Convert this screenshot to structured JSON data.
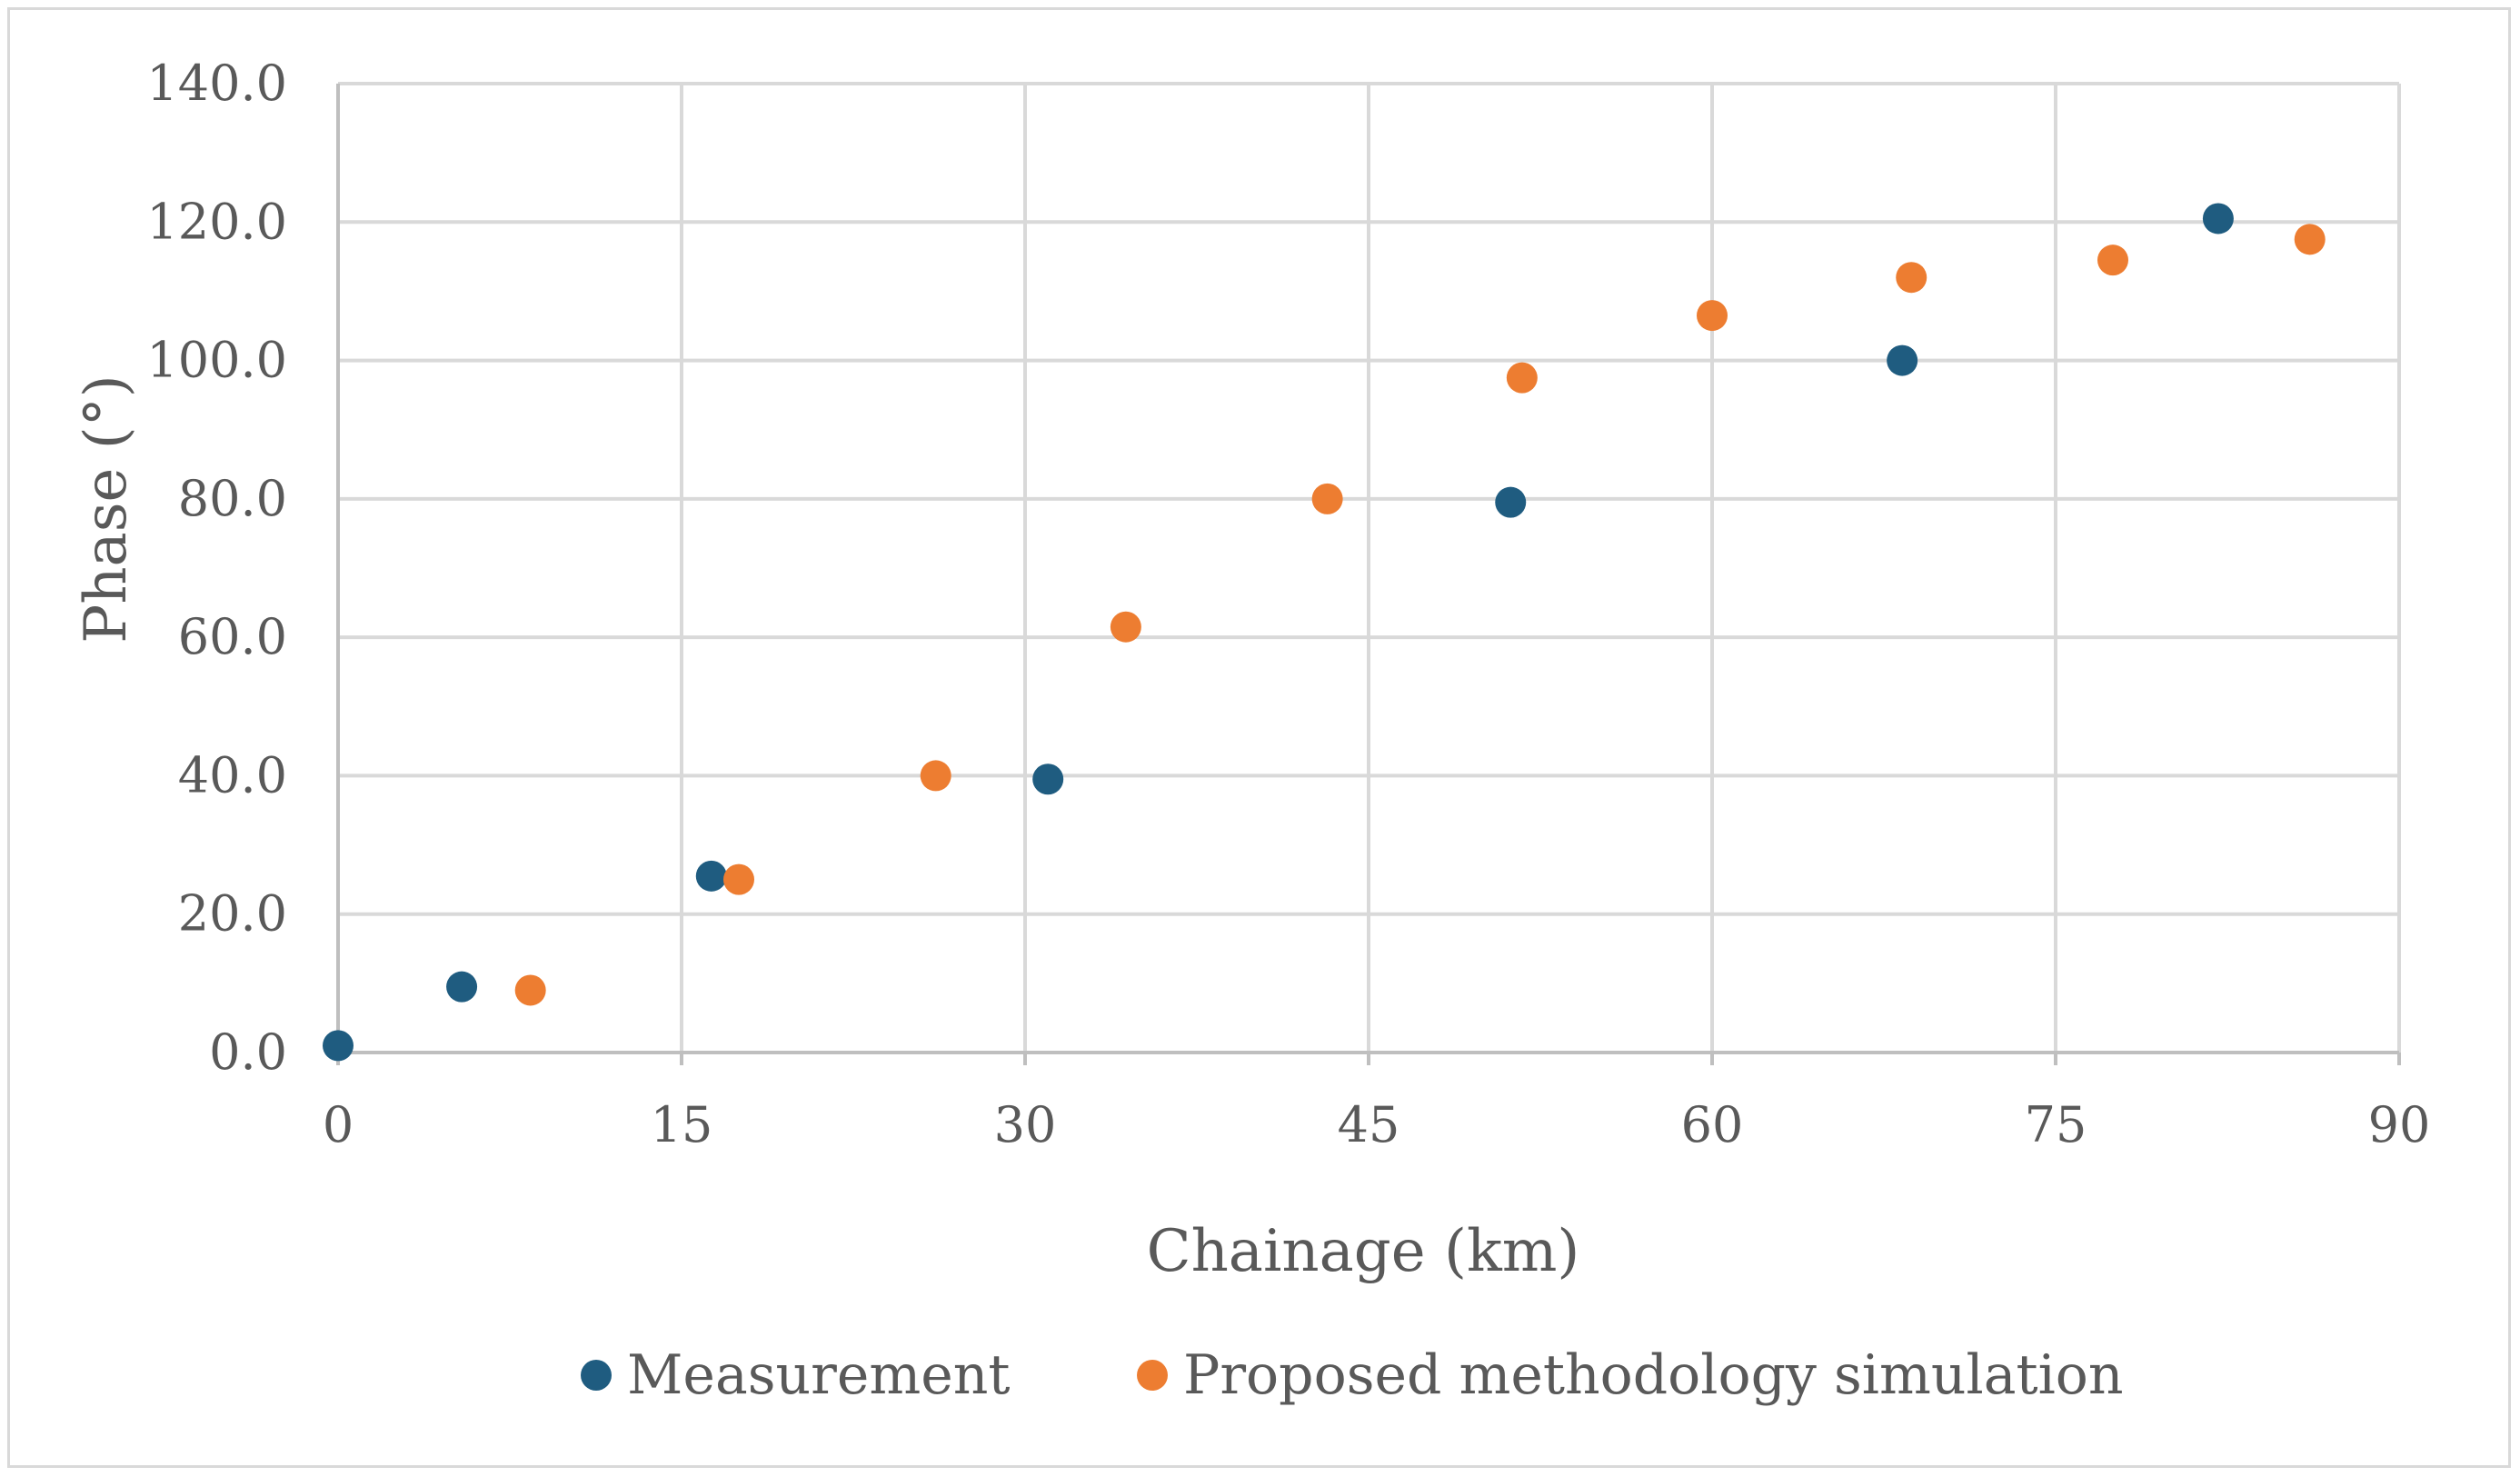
{
  "chart_data": {
    "type": "scatter",
    "title": "",
    "xlabel": "Chainage (km)",
    "ylabel": "Phase (°)",
    "xlim": [
      0,
      90
    ],
    "ylim": [
      0,
      140
    ],
    "x_ticks": [
      "0",
      "15",
      "30",
      "45",
      "60",
      "75",
      "90"
    ],
    "y_ticks": [
      "0.0",
      "20.0",
      "40.0",
      "60.0",
      "80.0",
      "100.0",
      "120.0",
      "140.0"
    ],
    "grid": true,
    "legend_position": "bottom",
    "series": [
      {
        "name": "Measurement",
        "color": "#1f5c80",
        "points": [
          {
            "x": 0,
            "y": 1.0
          },
          {
            "x": 5.4,
            "y": 9.5
          },
          {
            "x": 16.3,
            "y": 25.5
          },
          {
            "x": 31.0,
            "y": 39.5
          },
          {
            "x": 51.2,
            "y": 79.5
          },
          {
            "x": 68.3,
            "y": 100.0
          },
          {
            "x": 82.1,
            "y": 120.5
          }
        ]
      },
      {
        "name": "Proposed methodology simulation",
        "color": "#ed7d31",
        "points": [
          {
            "x": 8.4,
            "y": 9.0
          },
          {
            "x": 17.5,
            "y": 25.0
          },
          {
            "x": 26.1,
            "y": 40.0
          },
          {
            "x": 34.4,
            "y": 61.5
          },
          {
            "x": 43.2,
            "y": 80.0
          },
          {
            "x": 51.7,
            "y": 97.5
          },
          {
            "x": 60.0,
            "y": 106.5
          },
          {
            "x": 68.7,
            "y": 112.0
          },
          {
            "x": 77.5,
            "y": 114.5
          },
          {
            "x": 86.1,
            "y": 117.5
          }
        ]
      }
    ]
  }
}
